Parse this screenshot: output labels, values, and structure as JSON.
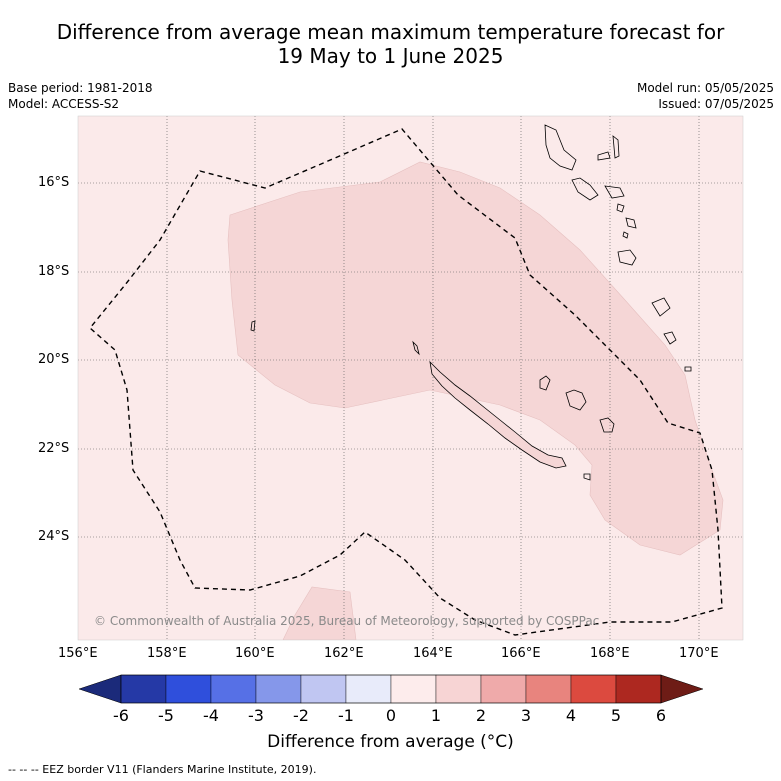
{
  "header": {
    "title_line1": "Difference from average mean maximum temperature forecast for",
    "title_line2": "19 May to 1 June 2025",
    "base_period": "Base period: 1981-2018",
    "model": "Model: ACCESS-S2",
    "model_run": "Model run: 05/05/2025",
    "issued": "Issued: 07/05/2025"
  },
  "map": {
    "lat_labels": [
      "16°S",
      "18°S",
      "20°S",
      "22°S",
      "24°S"
    ],
    "lon_labels": [
      "156°E",
      "158°E",
      "160°E",
      "162°E",
      "164°E",
      "166°E",
      "168°E",
      "170°E"
    ],
    "copyright": "© Commonwealth of Australia 2025, Bureau of Meteorology, supported by COSPPac",
    "background_color": "#fbeaea",
    "anomaly_color": "#f5d6d6"
  },
  "colorbar": {
    "ticks": [
      "-6",
      "-5",
      "-4",
      "-3",
      "-2",
      "-1",
      "0",
      "1",
      "2",
      "3",
      "4",
      "5",
      "6"
    ],
    "colors": [
      "#2539a6",
      "#2f4fdc",
      "#5670e6",
      "#8597ea",
      "#c0c6f2",
      "#e8ebfa",
      "#fdecec",
      "#f7d4d4",
      "#efaaaa",
      "#e8847e",
      "#dc4a3f",
      "#ad2820"
    ],
    "low_color": "#1b2a7a",
    "high_color": "#6e1c16",
    "title": "Difference from average (°C)"
  },
  "footnote": "--  --  -- EEZ border V11 (Flanders Marine Institute, 2019)."
}
